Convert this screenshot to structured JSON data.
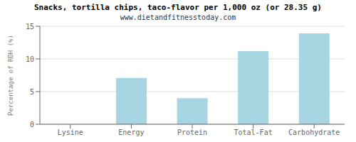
{
  "chart_data": {
    "type": "bar",
    "title": "Snacks, tortilla chips, taco-flavor per 1,000 oz (or 28.35 g)",
    "subtitle": "www.dietandfitnesstoday.com",
    "categories": [
      "Lysine",
      "Energy",
      "Protein",
      "Total-Fat",
      "Carbohydrate"
    ],
    "values": [
      0,
      7.1,
      4.0,
      11.2,
      13.9
    ],
    "color": "#a8d5e2",
    "ylabel": "Percentage of RDH (%)",
    "ylim": [
      0,
      15
    ],
    "yticks": [
      0,
      5,
      10,
      15
    ],
    "grid": true
  }
}
